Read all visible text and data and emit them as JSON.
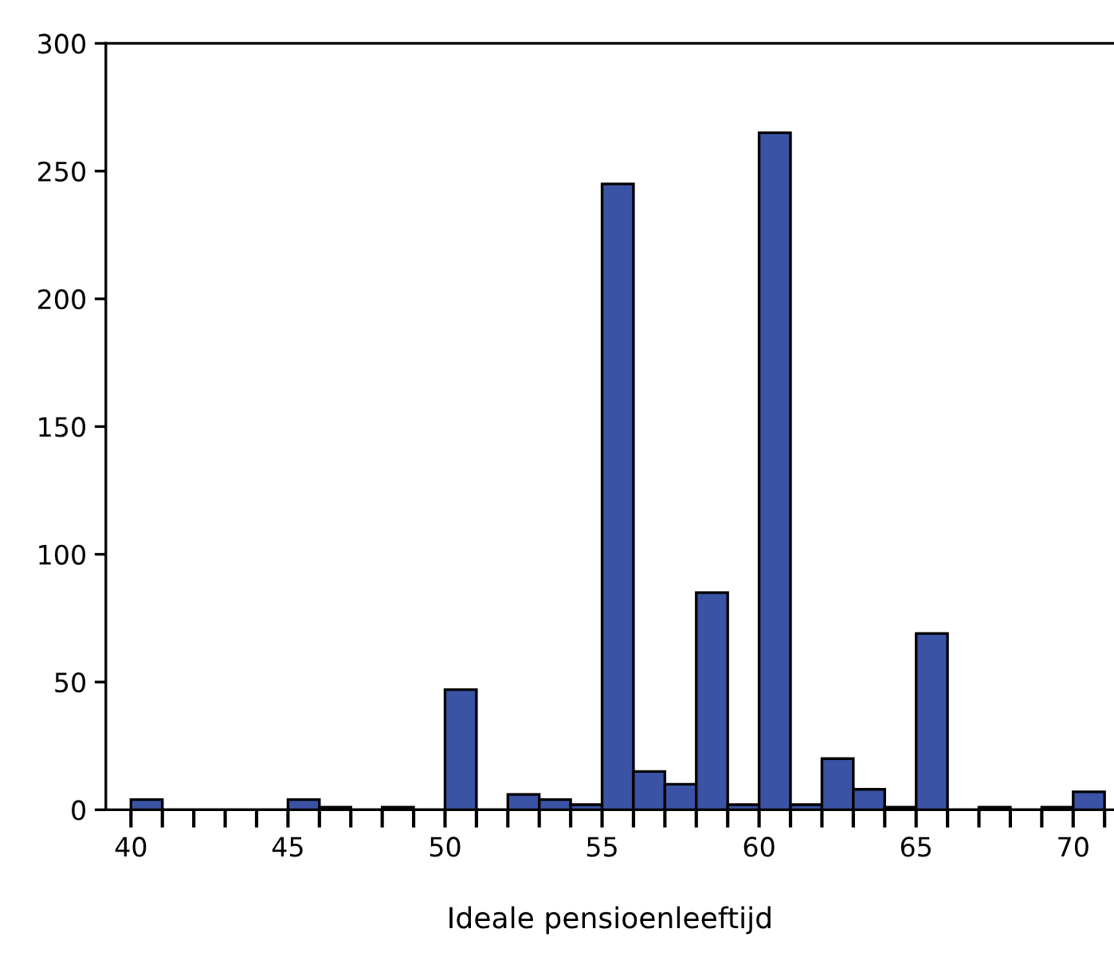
{
  "chart_data": {
    "type": "histogram",
    "xlabel": "Ideale pensioenleeftijd",
    "bins": [
      40,
      41,
      42,
      43,
      44,
      45,
      46,
      47,
      48,
      49,
      50,
      51,
      52,
      53,
      54,
      55,
      56,
      57,
      58,
      59,
      60,
      61,
      62,
      63,
      64,
      65,
      66,
      67,
      68,
      69,
      70,
      71
    ],
    "values": [
      4,
      0,
      0,
      0,
      0,
      4,
      1,
      0,
      1,
      0,
      47,
      0,
      6,
      4,
      2,
      245,
      15,
      10,
      85,
      2,
      265,
      2,
      20,
      8,
      1,
      69,
      0,
      1,
      0,
      1,
      7
    ],
    "color": "#3a53a4",
    "xlim": [
      39.2,
      71.3
    ],
    "ylim": [
      0,
      300
    ],
    "xticks": [
      40,
      {
        "value": 41,
        "label": null
      },
      {
        "value": 42,
        "label": null
      },
      {
        "value": 43,
        "label": null
      },
      {
        "value": 44,
        "label": null
      },
      45,
      {
        "value": 46,
        "label": null
      },
      {
        "value": 47,
        "label": null
      },
      {
        "value": 48,
        "label": null
      },
      {
        "value": 49,
        "label": null
      },
      50,
      {
        "value": 51,
        "label": null
      },
      {
        "value": 52,
        "label": null
      },
      {
        "value": 53,
        "label": null
      },
      {
        "value": 54,
        "label": null
      },
      55,
      {
        "value": 56,
        "label": null
      },
      {
        "value": 57,
        "label": null
      },
      {
        "value": 58,
        "label": null
      },
      {
        "value": 59,
        "label": null
      },
      60,
      {
        "value": 61,
        "label": null
      },
      {
        "value": 62,
        "label": null
      },
      {
        "value": 63,
        "label": null
      },
      {
        "value": 64,
        "label": null
      },
      65,
      {
        "value": 66,
        "label": null
      },
      {
        "value": 67,
        "label": null
      },
      {
        "value": 68,
        "label": null
      },
      {
        "value": 69,
        "label": null
      },
      70,
      {
        "value": 71,
        "label": null
      }
    ],
    "yticks": [
      0,
      50,
      100,
      150,
      200,
      250,
      300
    ],
    "grid": false,
    "legend": false
  }
}
